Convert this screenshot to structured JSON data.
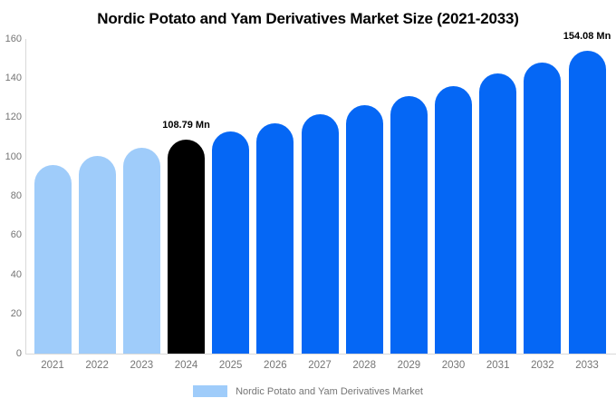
{
  "title": "Nordic Potato and Yam Derivatives Market Size (2021-2033)",
  "chart_data": {
    "type": "bar",
    "title": "Nordic Potato and Yam Derivatives Market Size (2021-2033)",
    "categories": [
      "2021",
      "2022",
      "2023",
      "2024",
      "2025",
      "2026",
      "2027",
      "2028",
      "2029",
      "2030",
      "2031",
      "2032",
      "2033"
    ],
    "values": [
      96.0,
      100.5,
      104.7,
      108.79,
      113.0,
      117.4,
      121.9,
      126.4,
      131.2,
      136.3,
      142.5,
      148.0,
      154.08
    ],
    "unit": "Mn",
    "bar_colors": [
      "#9fccfa",
      "#9fccfa",
      "#9fccfa",
      "#000000",
      "#0567f5",
      "#0567f5",
      "#0567f5",
      "#0567f5",
      "#0567f5",
      "#0567f5",
      "#0567f5",
      "#0567f5",
      "#0567f5"
    ],
    "annotations": [
      {
        "category": "2024",
        "label": "108.79 Mn"
      },
      {
        "category": "2033",
        "label": "154.08 Mn"
      }
    ],
    "xlabel": "",
    "ylabel": "",
    "ylim": [
      0,
      160
    ],
    "yticks": [
      0,
      20,
      40,
      60,
      80,
      100,
      120,
      140,
      160
    ],
    "grid": false,
    "legend": {
      "position": "bottom",
      "items": [
        {
          "label": "Nordic Potato and Yam Derivatives Market",
          "color": "#9fccfa"
        }
      ]
    }
  },
  "colors": {
    "highlight_bar": "#000000",
    "forecast_bar": "#0567f5",
    "historic_bar": "#9fccfa",
    "axis_line": "#d9d9d9",
    "tick_text": "#757575",
    "title_text": "#000000",
    "background": "#ffffff"
  }
}
